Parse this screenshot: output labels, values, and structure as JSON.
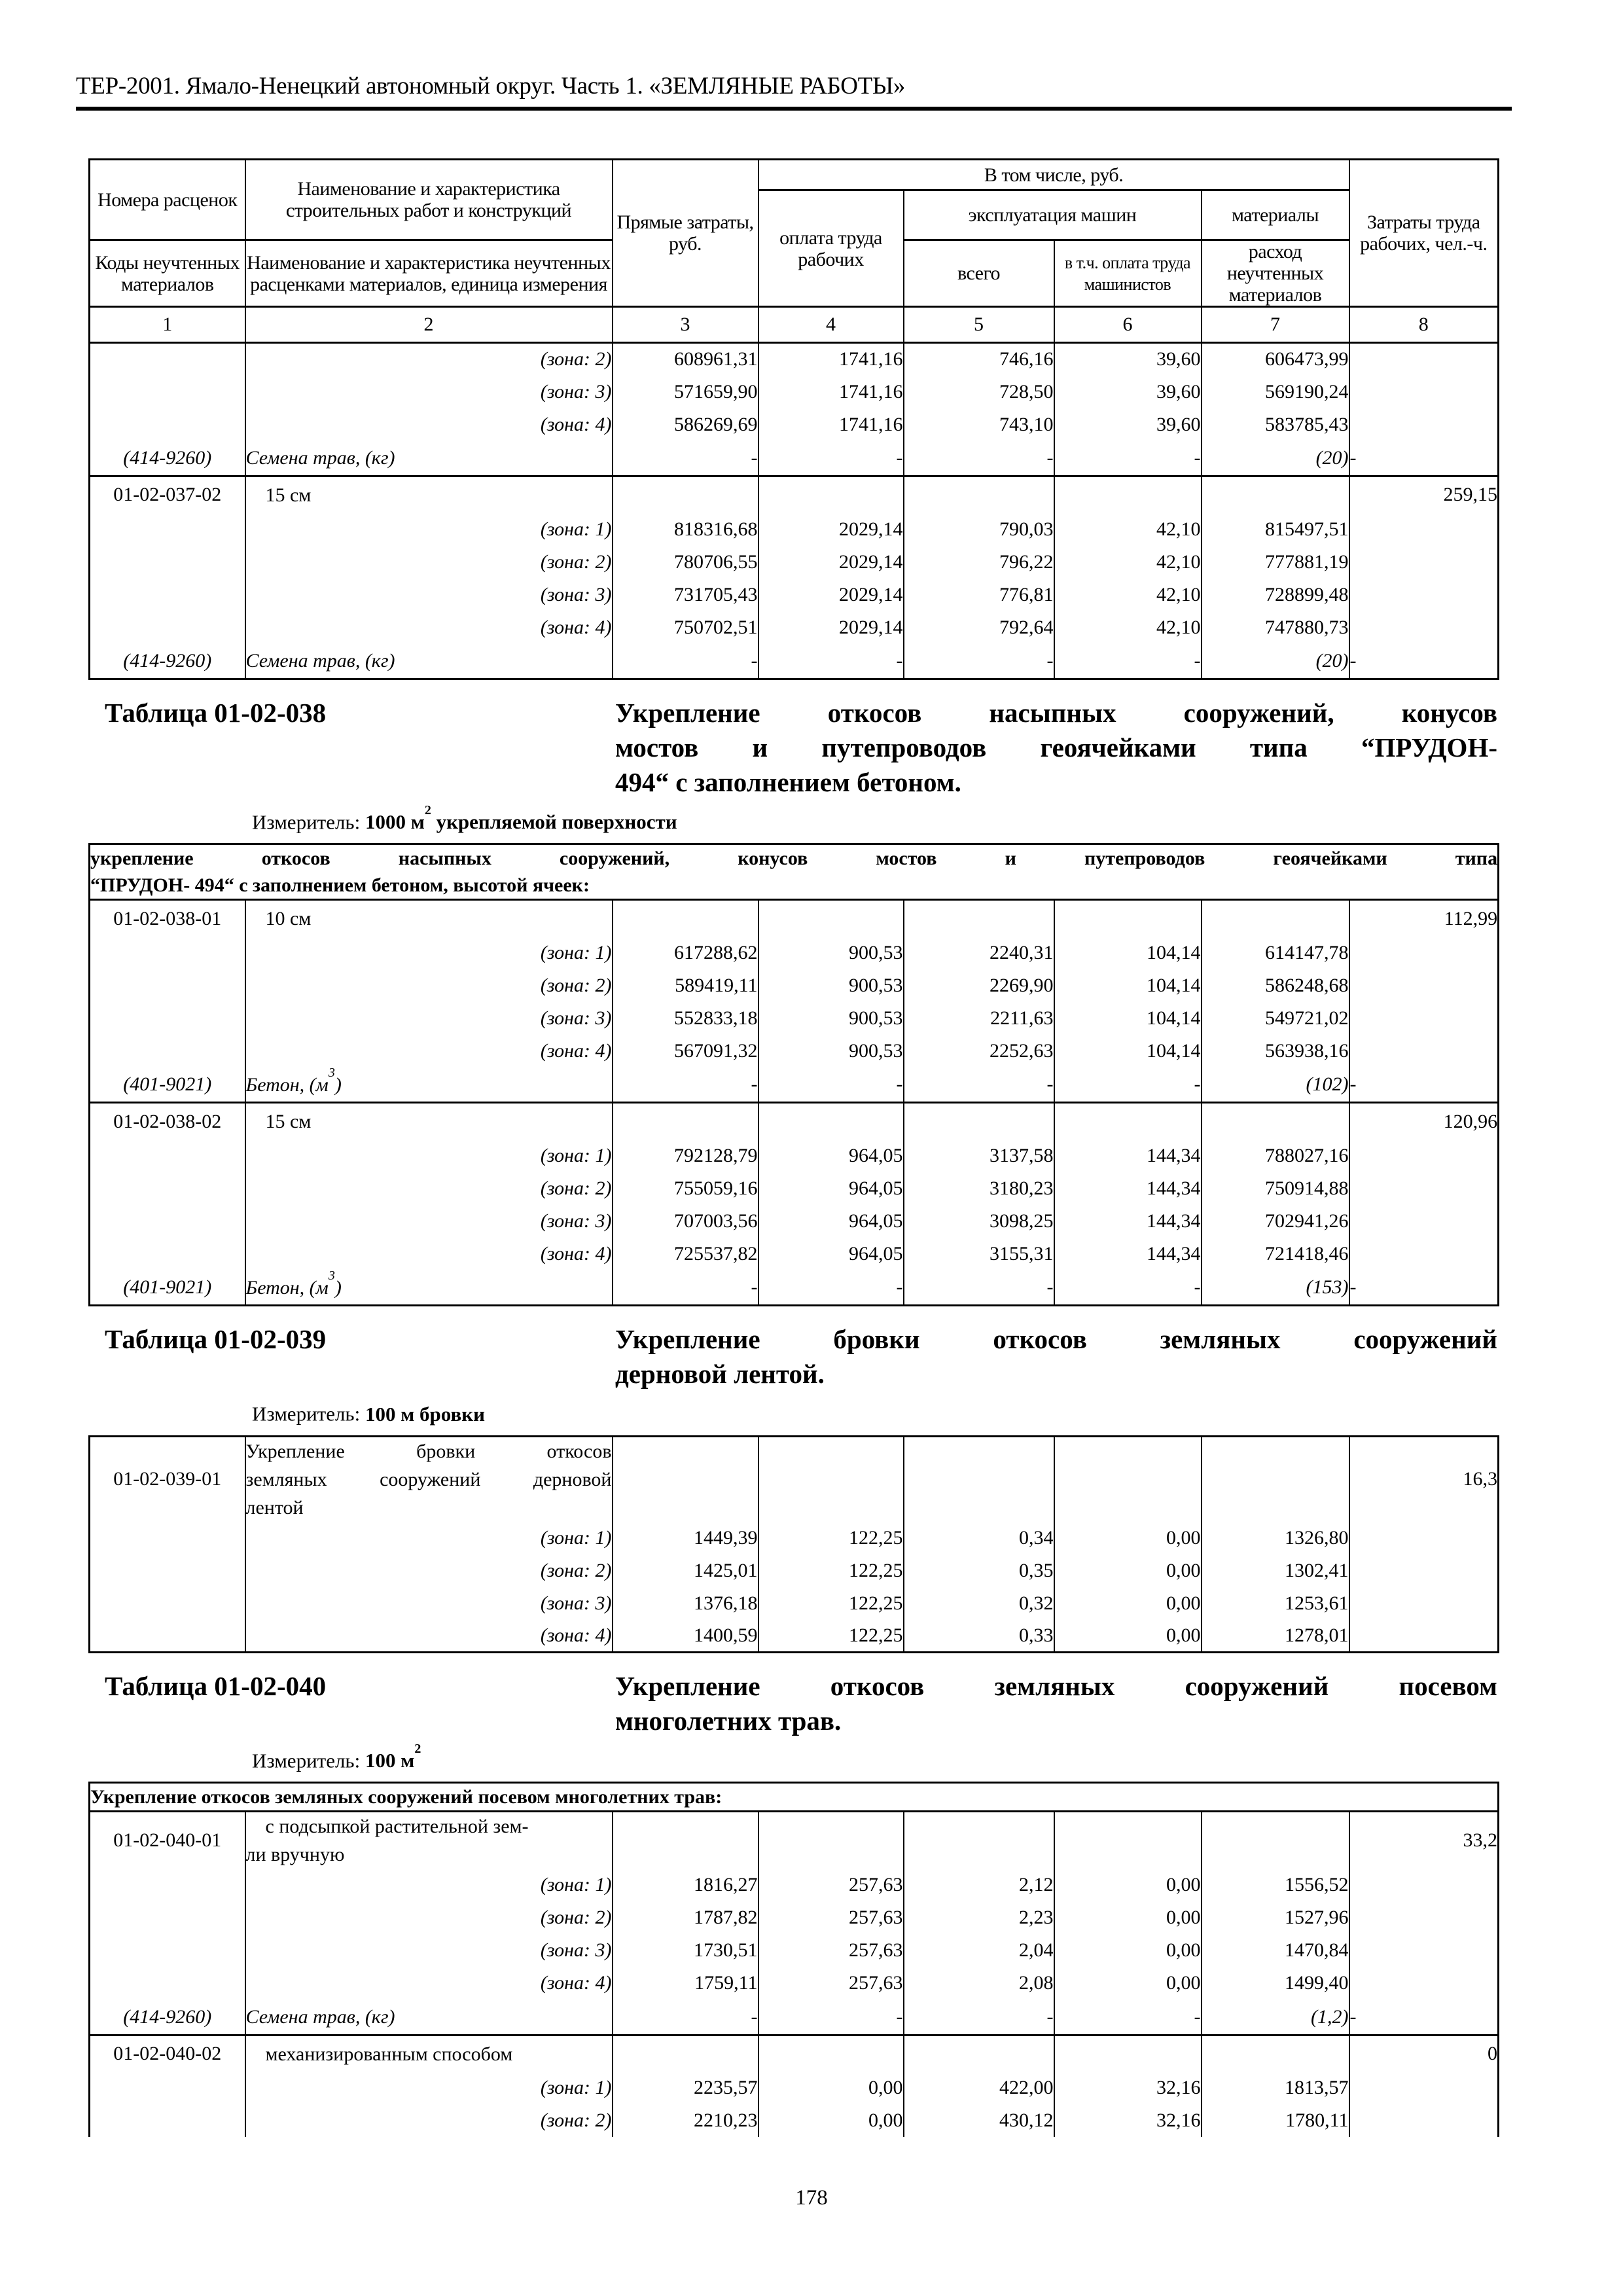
{
  "page": {
    "header": "ТЕР-2001. Ямало-Ненецкий автономный округ. Часть 1. «ЗЕМЛЯНЫЕ РАБОТЫ»",
    "page_number": "178"
  },
  "table_header": {
    "rate_numbers": "Номера расценок",
    "material_codes": "Коды неучтенных материалов",
    "works_name": "Наименование и характеристика строительных работ и конструкций",
    "materials_name": "Наименование и характеристика неучтенных расценками материалов, единица измерения",
    "direct_costs": "Прямые затраты, руб.",
    "including": "В том числе, руб.",
    "labor_pay": "оплата труда рабочих",
    "machines": "эксплуатация машин",
    "machines_total": "всего",
    "machinists_pay": "в т.ч. оплата труда машинистов",
    "materials": "материалы",
    "materials_consumption": "расход неучтенных материалов",
    "labor_costs": "Затраты труда рабочих, чел.-ч.",
    "column_numbers": [
      "1",
      "2",
      "3",
      "4",
      "5",
      "6",
      "7",
      "8"
    ]
  },
  "sections": [
    {
      "label": "Таблица 01-02-038",
      "title_lines": [
        "Укрепление откосов насыпных сооружений, конусов",
        "мостов и путепроводов геоячейками типа “ПРУДОН-",
        "494“ с заполнением бетоном."
      ],
      "measurer_label": "Измеритель:",
      "measurer_value": "1000 м",
      "measurer_sup": "2",
      "measurer_suffix": " укрепляемой поверхности"
    },
    {
      "label": "Таблица 01-02-039",
      "title_lines": [
        "Укрепление бровки откосов земляных сооружений",
        "дерновой лентой."
      ],
      "measurer_label": "Измеритель:",
      "measurer_value": "100 м бровки",
      "measurer_sup": "",
      "measurer_suffix": ""
    },
    {
      "label": "Таблица 01-02-040",
      "title_lines": [
        "Укрепление откосов земляных сооружений посевом",
        "многолетних трав."
      ],
      "measurer_label": "Измеритель:",
      "measurer_value": "100 м",
      "measurer_sup": "2",
      "measurer_suffix": ""
    }
  ],
  "chunks": {
    "t037": {
      "rows": [
        {
          "type": "zone",
          "label": "(зона: 2)",
          "values": [
            "608961,31",
            "1741,16",
            "746,16",
            "39,60",
            "606473,99"
          ]
        },
        {
          "type": "zone",
          "label": "(зона: 3)",
          "values": [
            "571659,90",
            "1741,16",
            "728,50",
            "39,60",
            "569190,24"
          ]
        },
        {
          "type": "zone",
          "label": "(зона: 4)",
          "values": [
            "586269,69",
            "1741,16",
            "743,10",
            "39,60",
            "583785,43"
          ]
        },
        {
          "type": "material",
          "code": "(414-9260)",
          "name": "Семена трав, (кг)",
          "name_sup": "",
          "name_post": "",
          "consumption": "(20)"
        },
        {
          "type": "title",
          "code": "01-02-037-02",
          "lines": [
            "15 см"
          ],
          "indent": true,
          "labor": "259,15"
        },
        {
          "type": "zone",
          "label": "(зона: 1)",
          "values": [
            "818316,68",
            "2029,14",
            "790,03",
            "42,10",
            "815497,51"
          ]
        },
        {
          "type": "zone",
          "label": "(зона: 2)",
          "values": [
            "780706,55",
            "2029,14",
            "796,22",
            "42,10",
            "777881,19"
          ]
        },
        {
          "type": "zone",
          "label": "(зона: 3)",
          "values": [
            "731705,43",
            "2029,14",
            "776,81",
            "42,10",
            "728899,48"
          ]
        },
        {
          "type": "zone",
          "label": "(зона: 4)",
          "values": [
            "750702,51",
            "2029,14",
            "792,64",
            "42,10",
            "747880,73"
          ]
        },
        {
          "type": "material",
          "code": "(414-9260)",
          "name": "Семена трав, (кг)",
          "name_sup": "",
          "name_post": "",
          "consumption": "(20)"
        }
      ]
    },
    "t038": {
      "rows": [
        {
          "type": "subheader",
          "lines": [
            "укрепление откосов насыпных сооружений, конусов мостов и путепроводов геоячейками типа",
            "“ПРУДОН- 494“ с заполнением бетоном, высотой ячеек:"
          ]
        },
        {
          "type": "title",
          "code": "01-02-038-01",
          "lines": [
            "10 см"
          ],
          "indent": true,
          "labor": "112,99"
        },
        {
          "type": "zone",
          "label": "(зона: 1)",
          "values": [
            "617288,62",
            "900,53",
            "2240,31",
            "104,14",
            "614147,78"
          ]
        },
        {
          "type": "zone",
          "label": "(зона: 2)",
          "values": [
            "589419,11",
            "900,53",
            "2269,90",
            "104,14",
            "586248,68"
          ]
        },
        {
          "type": "zone",
          "label": "(зона: 3)",
          "values": [
            "552833,18",
            "900,53",
            "2211,63",
            "104,14",
            "549721,02"
          ]
        },
        {
          "type": "zone",
          "label": "(зона: 4)",
          "values": [
            "567091,32",
            "900,53",
            "2252,63",
            "104,14",
            "563938,16"
          ]
        },
        {
          "type": "material",
          "code": "(401-9021)",
          "name": "Бетон, (м",
          "name_sup": "3",
          "name_post": ")",
          "consumption": "(102)"
        },
        {
          "type": "title",
          "code": "01-02-038-02",
          "lines": [
            "15 см"
          ],
          "indent": true,
          "labor": "120,96"
        },
        {
          "type": "zone",
          "label": "(зона: 1)",
          "values": [
            "792128,79",
            "964,05",
            "3137,58",
            "144,34",
            "788027,16"
          ]
        },
        {
          "type": "zone",
          "label": "(зона: 2)",
          "values": [
            "755059,16",
            "964,05",
            "3180,23",
            "144,34",
            "750914,88"
          ]
        },
        {
          "type": "zone",
          "label": "(зона: 3)",
          "values": [
            "707003,56",
            "964,05",
            "3098,25",
            "144,34",
            "702941,26"
          ]
        },
        {
          "type": "zone",
          "label": "(зона: 4)",
          "values": [
            "725537,82",
            "964,05",
            "3155,31",
            "144,34",
            "721418,46"
          ]
        },
        {
          "type": "material",
          "code": "(401-9021)",
          "name": "Бетон, (м",
          "name_sup": "3",
          "name_post": ")",
          "consumption": "(153)"
        }
      ]
    },
    "t039": {
      "rows": [
        {
          "type": "title",
          "code": "01-02-039-01",
          "lines": [
            "Укрепление бровки откосов",
            "земляных сооружений дерновой",
            "лентой"
          ],
          "justify": true,
          "labor": "16,3",
          "middle": true
        },
        {
          "type": "zone",
          "label": "(зона: 1)",
          "values": [
            "1449,39",
            "122,25",
            "0,34",
            "0,00",
            "1326,80"
          ]
        },
        {
          "type": "zone",
          "label": "(зона: 2)",
          "values": [
            "1425,01",
            "122,25",
            "0,35",
            "0,00",
            "1302,41"
          ]
        },
        {
          "type": "zone",
          "label": "(зона: 3)",
          "values": [
            "1376,18",
            "122,25",
            "0,32",
            "0,00",
            "1253,61"
          ]
        },
        {
          "type": "zone",
          "label": "(зона: 4)",
          "values": [
            "1400,59",
            "122,25",
            "0,33",
            "0,00",
            "1278,01"
          ]
        }
      ]
    },
    "t040": {
      "rows": [
        {
          "type": "subheader",
          "lines": [
            "Укрепление откосов земляных сооружений посевом многолетних трав:"
          ]
        },
        {
          "type": "title",
          "code": "01-02-040-01",
          "lines": [
            "с подсыпкой растительной зем-",
            "ли вручную"
          ],
          "indent": true,
          "labor": "33,2"
        },
        {
          "type": "zone",
          "label": "(зона: 1)",
          "values": [
            "1816,27",
            "257,63",
            "2,12",
            "0,00",
            "1556,52"
          ]
        },
        {
          "type": "zone",
          "label": "(зона: 2)",
          "values": [
            "1787,82",
            "257,63",
            "2,23",
            "0,00",
            "1527,96"
          ]
        },
        {
          "type": "zone",
          "label": "(зона: 3)",
          "values": [
            "1730,51",
            "257,63",
            "2,04",
            "0,00",
            "1470,84"
          ]
        },
        {
          "type": "zone",
          "label": "(зона: 4)",
          "values": [
            "1759,11",
            "257,63",
            "2,08",
            "0,00",
            "1499,40"
          ]
        },
        {
          "type": "material",
          "code": "(414-9260)",
          "name": "Семена трав, (кг)",
          "name_sup": "",
          "name_post": "",
          "consumption": "(1,2)"
        },
        {
          "type": "title",
          "code": "01-02-040-02",
          "lines": [
            "механизированным способом"
          ],
          "indent": true,
          "labor": "0"
        },
        {
          "type": "zone",
          "label": "(зона: 1)",
          "values": [
            "2235,57",
            "0,00",
            "422,00",
            "32,16",
            "1813,57"
          ]
        },
        {
          "type": "zone",
          "label": "(зона: 2)",
          "values": [
            "2210,23",
            "0,00",
            "430,12",
            "32,16",
            "1780,11"
          ]
        }
      ]
    }
  }
}
